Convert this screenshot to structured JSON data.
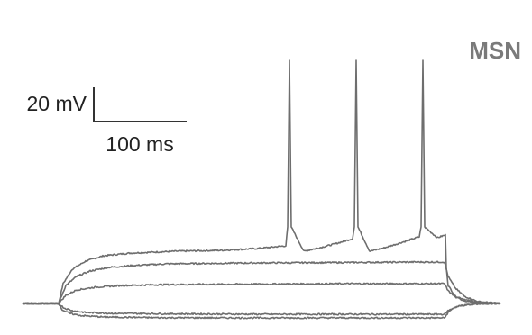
{
  "chart_data": {
    "type": "line",
    "title": "MSN",
    "scale_bar": {
      "voltage_label": "20 mV",
      "time_label": "100 ms",
      "voltage_value_mV": 20,
      "time_value_ms": 100
    },
    "x_unit": "ms",
    "y_unit": "mV",
    "xlim": [
      0,
      530
    ],
    "grid": false,
    "colors": {
      "trace": "#6e6e6e",
      "scale": "#333333",
      "title": "#7a7a7a"
    },
    "current_step": {
      "onset_ms": 40,
      "offset_ms": 468
    },
    "series": [
      {
        "x": [
          0,
          40,
          45,
          55,
          70,
          90,
          120,
          170,
          220,
          260,
          292,
          294,
          296,
          298,
          312,
          330,
          346,
          366,
          368,
          370,
          372,
          385,
          402,
          418,
          440,
          442,
          444,
          446,
          460,
          469,
          470,
          472,
          480,
          495,
          510,
          530
        ],
        "y": [
          0,
          0,
          22,
          38,
          47,
          53,
          56,
          58,
          59,
          61,
          64,
          85,
          270,
          85,
          58,
          62,
          66,
          72,
          85,
          270,
          85,
          58,
          62,
          67,
          74,
          85,
          270,
          85,
          73,
          76,
          40,
          20,
          8,
          3,
          1,
          0
        ]
      },
      {
        "x": [
          0,
          40,
          48,
          60,
          75,
          95,
          120,
          160,
          260,
          360,
          440,
          468,
          472,
          480,
          490,
          505,
          530
        ],
        "y": [
          0,
          0,
          20,
          30,
          36,
          40,
          42,
          44,
          45,
          45.5,
          46,
          46,
          30,
          17,
          8,
          2,
          0
        ]
      },
      {
        "x": [
          0,
          40,
          48,
          60,
          80,
          110,
          160,
          260,
          360,
          468,
          472,
          480,
          490,
          505,
          530
        ],
        "y": [
          0,
          0,
          9,
          15,
          18,
          20,
          21,
          21.5,
          22,
          22,
          14,
          7,
          3,
          1,
          0
        ]
      },
      {
        "x": [
          0,
          40,
          46,
          55,
          70,
          100,
          160,
          260,
          360,
          468,
          472,
          480,
          490,
          505,
          530
        ],
        "y": [
          0,
          0,
          -5,
          -8,
          -10,
          -11,
          -11.5,
          -12,
          -12,
          -12,
          -8,
          -4,
          -2,
          -0.5,
          0
        ]
      },
      {
        "x": [
          0,
          40,
          44,
          52,
          65,
          90,
          150,
          260,
          360,
          468,
          472,
          478,
          488,
          505,
          530
        ],
        "y": [
          0,
          0,
          -7,
          -11,
          -13.5,
          -15,
          -15.8,
          -16,
          -16,
          -16,
          -10,
          -5,
          -2,
          -0.5,
          0
        ]
      }
    ]
  }
}
